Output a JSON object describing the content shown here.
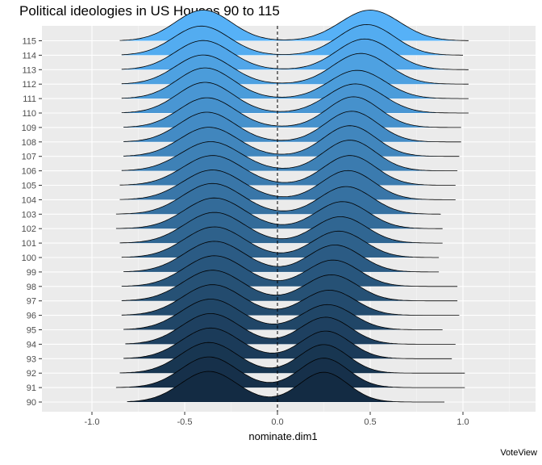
{
  "chart_data": {
    "type": "ridgeline",
    "title": "Political ideologies in US Houses 90 to 115",
    "xlabel": "nominate.dim1",
    "ylabel": "",
    "caption": "VoteView",
    "xlim": [
      -1.25,
      1.3
    ],
    "x_ticks": [
      "-1.0",
      "-0.5",
      "0.0",
      "0.5",
      "1.0"
    ],
    "x_tick_values": [
      -1.0,
      -0.5,
      0.0,
      0.5,
      1.0
    ],
    "reference_line": {
      "x": 0,
      "style": "dashed"
    },
    "grid": true,
    "fill_gradient": {
      "low": "#132B43",
      "high": "#56B1F7"
    },
    "categories": [
      "90",
      "91",
      "92",
      "93",
      "94",
      "95",
      "96",
      "97",
      "98",
      "99",
      "100",
      "101",
      "102",
      "103",
      "104",
      "105",
      "106",
      "107",
      "108",
      "109",
      "110",
      "111",
      "112",
      "113",
      "114",
      "115"
    ],
    "series": [
      {
        "category": "90",
        "range": [
          -0.81,
          0.9
        ],
        "dem_mean": -0.37,
        "dem_sd": 0.15,
        "dem_w": 1.0,
        "rep_mean": 0.25,
        "rep_sd": 0.13,
        "rep_w": 0.97
      },
      {
        "category": "91",
        "range": [
          -0.87,
          1.01
        ],
        "dem_mean": -0.37,
        "dem_sd": 0.15,
        "dem_w": 1.0,
        "rep_mean": 0.25,
        "rep_sd": 0.13,
        "rep_w": 0.96
      },
      {
        "category": "92",
        "range": [
          -0.85,
          1.01
        ],
        "dem_mean": -0.37,
        "dem_sd": 0.152,
        "dem_w": 1.0,
        "rep_mean": 0.25,
        "rep_sd": 0.13,
        "rep_w": 0.93
      },
      {
        "category": "93",
        "range": [
          -0.83,
          0.94
        ],
        "dem_mean": -0.36,
        "dem_sd": 0.155,
        "dem_w": 1.0,
        "rep_mean": 0.26,
        "rep_sd": 0.132,
        "rep_w": 0.9
      },
      {
        "category": "94",
        "range": [
          -0.82,
          0.96
        ],
        "dem_mean": -0.36,
        "dem_sd": 0.155,
        "dem_w": 1.0,
        "rep_mean": 0.26,
        "rep_sd": 0.135,
        "rep_w": 0.88
      },
      {
        "category": "95",
        "range": [
          -0.83,
          0.89
        ],
        "dem_mean": -0.36,
        "dem_sd": 0.158,
        "dem_w": 1.0,
        "rep_mean": 0.27,
        "rep_sd": 0.138,
        "rep_w": 0.82
      },
      {
        "category": "96",
        "range": [
          -0.84,
          0.98
        ],
        "dem_mean": -0.35,
        "dem_sd": 0.16,
        "dem_w": 1.0,
        "rep_mean": 0.28,
        "rep_sd": 0.14,
        "rep_w": 0.82
      },
      {
        "category": "97",
        "range": [
          -0.84,
          0.97
        ],
        "dem_mean": -0.35,
        "dem_sd": 0.16,
        "dem_w": 1.0,
        "rep_mean": 0.29,
        "rep_sd": 0.14,
        "rep_w": 0.85
      },
      {
        "category": "98",
        "range": [
          -0.84,
          0.97
        ],
        "dem_mean": -0.34,
        "dem_sd": 0.16,
        "dem_w": 1.0,
        "rep_mean": 0.3,
        "rep_sd": 0.14,
        "rep_w": 0.86
      },
      {
        "category": "99",
        "range": [
          -0.83,
          0.87
        ],
        "dem_mean": -0.34,
        "dem_sd": 0.16,
        "dem_w": 1.0,
        "rep_mean": 0.31,
        "rep_sd": 0.14,
        "rep_w": 0.88
      },
      {
        "category": "100",
        "range": [
          -0.84,
          0.87
        ],
        "dem_mean": -0.34,
        "dem_sd": 0.16,
        "dem_w": 1.0,
        "rep_mean": 0.33,
        "rep_sd": 0.14,
        "rep_w": 0.86
      },
      {
        "category": "101",
        "range": [
          -0.85,
          0.89
        ],
        "dem_mean": -0.34,
        "dem_sd": 0.16,
        "dem_w": 1.0,
        "rep_mean": 0.34,
        "rep_sd": 0.14,
        "rep_w": 0.86
      },
      {
        "category": "102",
        "range": [
          -0.87,
          0.89
        ],
        "dem_mean": -0.34,
        "dem_sd": 0.16,
        "dem_w": 1.0,
        "rep_mean": 0.35,
        "rep_sd": 0.14,
        "rep_w": 0.88
      },
      {
        "category": "103",
        "range": [
          -0.87,
          0.88
        ],
        "dem_mean": -0.35,
        "dem_sd": 0.16,
        "dem_w": 1.0,
        "rep_mean": 0.37,
        "rep_sd": 0.14,
        "rep_w": 0.9
      },
      {
        "category": "104",
        "range": [
          -0.85,
          0.96
        ],
        "dem_mean": -0.35,
        "dem_sd": 0.16,
        "dem_w": 0.97,
        "rep_mean": 0.38,
        "rep_sd": 0.14,
        "rep_w": 0.95
      },
      {
        "category": "105",
        "range": [
          -0.85,
          0.96
        ],
        "dem_mean": -0.35,
        "dem_sd": 0.16,
        "dem_w": 0.97,
        "rep_mean": 0.39,
        "rep_sd": 0.14,
        "rep_w": 0.97
      },
      {
        "category": "106",
        "range": [
          -0.84,
          0.97
        ],
        "dem_mean": -0.36,
        "dem_sd": 0.16,
        "dem_w": 0.95,
        "rep_mean": 0.39,
        "rep_sd": 0.14,
        "rep_w": 1.0
      },
      {
        "category": "107",
        "range": [
          -0.83,
          0.98
        ],
        "dem_mean": -0.37,
        "dem_sd": 0.155,
        "dem_w": 0.95,
        "rep_mean": 0.39,
        "rep_sd": 0.14,
        "rep_w": 1.0
      },
      {
        "category": "108",
        "range": [
          -0.83,
          0.99
        ],
        "dem_mean": -0.38,
        "dem_sd": 0.15,
        "dem_w": 0.97,
        "rep_mean": 0.4,
        "rep_sd": 0.14,
        "rep_w": 1.0
      },
      {
        "category": "109",
        "range": [
          -0.83,
          0.99
        ],
        "dem_mean": -0.38,
        "dem_sd": 0.15,
        "dem_w": 0.97,
        "rep_mean": 0.41,
        "rep_sd": 0.14,
        "rep_w": 1.0
      },
      {
        "category": "110",
        "range": [
          -0.84,
          1.03
        ],
        "dem_mean": -0.39,
        "dem_sd": 0.15,
        "dem_w": 1.0,
        "rep_mean": 0.42,
        "rep_sd": 0.15,
        "rep_w": 0.95
      },
      {
        "category": "111",
        "range": [
          -0.84,
          1.03
        ],
        "dem_mean": -0.39,
        "dem_sd": 0.15,
        "dem_w": 1.0,
        "rep_mean": 0.43,
        "rep_sd": 0.15,
        "rep_w": 0.92
      },
      {
        "category": "112",
        "range": [
          -0.84,
          1.03
        ],
        "dem_mean": -0.4,
        "dem_sd": 0.15,
        "dem_w": 0.95,
        "rep_mean": 0.45,
        "rep_sd": 0.15,
        "rep_w": 1.0
      },
      {
        "category": "113",
        "range": [
          -0.84,
          1.03
        ],
        "dem_mean": -0.4,
        "dem_sd": 0.15,
        "dem_w": 0.95,
        "rep_mean": 0.47,
        "rep_sd": 0.15,
        "rep_w": 1.0
      },
      {
        "category": "114",
        "range": [
          -0.84,
          1.0
        ],
        "dem_mean": -0.41,
        "dem_sd": 0.15,
        "dem_w": 0.95,
        "rep_mean": 0.48,
        "rep_sd": 0.15,
        "rep_w": 1.0
      },
      {
        "category": "115",
        "range": [
          -0.85,
          1.03
        ],
        "dem_mean": -0.4,
        "dem_sd": 0.15,
        "dem_w": 1.0,
        "rep_mean": 0.5,
        "rep_sd": 0.16,
        "rep_w": 1.0
      }
    ]
  }
}
